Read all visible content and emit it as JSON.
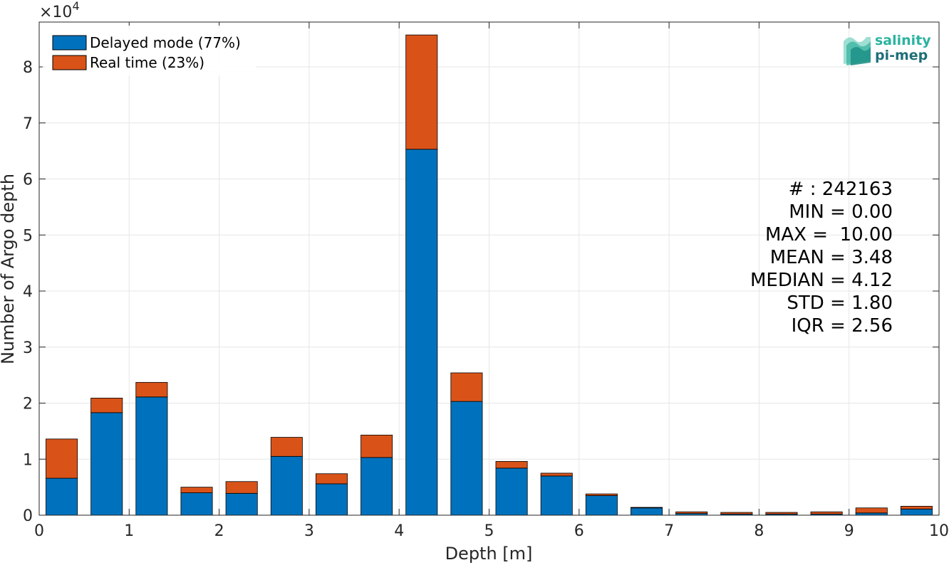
{
  "chart_data": {
    "type": "bar",
    "stacked": true,
    "xlabel": "Depth [m]",
    "ylabel": "Number of Argo depth",
    "xlim": [
      0,
      10
    ],
    "ylim": [
      0,
      88000
    ],
    "x_ticks": [
      "0",
      "1",
      "2",
      "3",
      "4",
      "5",
      "6",
      "7",
      "8",
      "9",
      "10"
    ],
    "y_ticks": [
      "0",
      "1",
      "2",
      "3",
      "4",
      "5",
      "6",
      "7",
      "8"
    ],
    "y_multiplier_label": "×10",
    "y_multiplier_exponent": "4",
    "grid": true,
    "legend_position": "top-left",
    "bin_centers": [
      0.25,
      0.75,
      1.25,
      1.75,
      2.25,
      2.75,
      3.25,
      3.75,
      4.25,
      4.75,
      5.25,
      5.75,
      6.25,
      6.75,
      7.25,
      7.75,
      8.25,
      8.75,
      9.25,
      9.75
    ],
    "series": [
      {
        "name": "Delayed mode (77%)",
        "color": "#0072BD",
        "values": [
          6600,
          18300,
          21100,
          4000,
          3900,
          10500,
          5600,
          10300,
          65300,
          20300,
          8400,
          7000,
          3500,
          1300,
          300,
          200,
          200,
          200,
          400,
          1100
        ]
      },
      {
        "name": "Real time (23%)",
        "color": "#D95319",
        "values": [
          7000,
          2600,
          2600,
          1000,
          2100,
          3400,
          1800,
          4000,
          20400,
          5100,
          1200,
          500,
          300,
          100,
          300,
          300,
          300,
          400,
          900,
          500
        ]
      }
    ],
    "annotations": [
      "# : 242163",
      "MIN = 0.00",
      "MAX =  10.00",
      "MEAN = 3.48",
      "MEDIAN = 4.12",
      "STD = 1.80",
      "IQR = 2.56"
    ]
  },
  "logo": {
    "line1": "salinity",
    "line2": "pi-mep",
    "color1": "#2bb3a0",
    "color2": "#1f6f78"
  },
  "colors": {
    "axis": "#262626",
    "grid": "#e6e6e6",
    "bar_edge": "#000000"
  }
}
